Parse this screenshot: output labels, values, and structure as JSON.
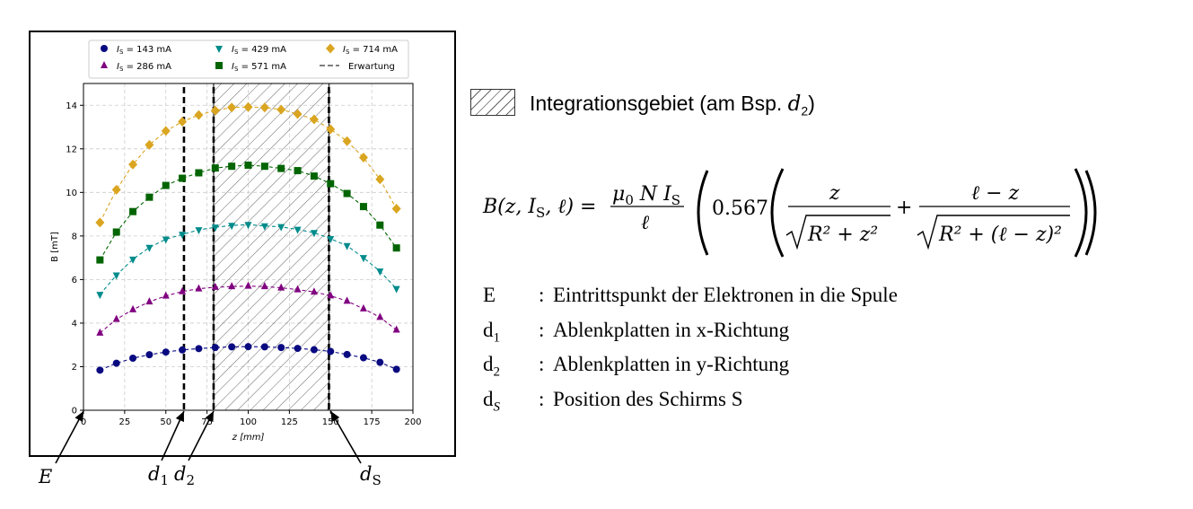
{
  "chart_data": {
    "type": "scatter",
    "xlabel": "z [mm]",
    "ylabel": "B [mT]",
    "xlim": [
      0,
      200
    ],
    "ylim": [
      0,
      15
    ],
    "xticks": [
      0,
      25,
      50,
      75,
      100,
      125,
      150,
      175,
      200
    ],
    "yticks": [
      0,
      2,
      4,
      6,
      8,
      10,
      12,
      14
    ],
    "grid": true,
    "legend_position": "top (above plot, 3 columns)",
    "x": [
      10,
      20,
      30,
      40,
      50,
      60,
      70,
      80,
      90,
      100,
      110,
      120,
      130,
      140,
      150,
      160,
      170,
      180,
      190
    ],
    "series": [
      {
        "name": "I_S = 143 mA",
        "label_text": "= 143 mA",
        "marker": "circle",
        "color": "#0a0a80",
        "values": [
          1.84,
          2.16,
          2.39,
          2.55,
          2.67,
          2.77,
          2.83,
          2.88,
          2.91,
          2.92,
          2.91,
          2.88,
          2.84,
          2.78,
          2.7,
          2.56,
          2.41,
          2.2,
          1.88
        ]
      },
      {
        "name": "I_S = 286 mA",
        "label_text": "= 286 mA",
        "marker": "triangle-up",
        "color": "#800080",
        "values": [
          3.55,
          4.18,
          4.62,
          4.98,
          5.25,
          5.45,
          5.58,
          5.65,
          5.68,
          5.7,
          5.68,
          5.62,
          5.54,
          5.43,
          5.26,
          5.01,
          4.66,
          4.27,
          3.69
        ]
      },
      {
        "name": "I_S = 429 mA",
        "label_text": "= 429 mA",
        "marker": "triangle-down",
        "color": "#008b8b",
        "values": [
          5.31,
          6.2,
          6.93,
          7.47,
          7.85,
          8.07,
          8.28,
          8.4,
          8.48,
          8.52,
          8.46,
          8.42,
          8.3,
          8.15,
          7.87,
          7.55,
          7.0,
          6.38,
          5.58
        ]
      },
      {
        "name": "I_S = 571 mA",
        "label_text": "= 571 mA",
        "marker": "square",
        "color": "#006400",
        "values": [
          6.9,
          8.18,
          9.12,
          9.78,
          10.32,
          10.65,
          10.9,
          11.12,
          11.2,
          11.25,
          11.2,
          11.1,
          11.0,
          10.75,
          10.4,
          9.95,
          9.35,
          8.5,
          7.45
        ]
      },
      {
        "name": "I_S = 714 mA",
        "label_text": "= 714 mA",
        "marker": "diamond",
        "color": "#daa520",
        "values": [
          8.62,
          10.12,
          11.28,
          12.18,
          12.82,
          13.25,
          13.55,
          13.76,
          13.9,
          13.92,
          13.9,
          13.8,
          13.6,
          13.35,
          12.9,
          12.35,
          11.6,
          10.6,
          9.25
        ]
      }
    ],
    "expectation_label": "Erwartung",
    "expectation_style": "dashed",
    "positions": {
      "E": 0,
      "d1": 61,
      "d2": 79,
      "dS": 149
    },
    "integration_region": [
      79,
      149
    ]
  },
  "annotations": {
    "E": "E",
    "d1": "d",
    "d1_sub": "1",
    "d2": "d",
    "d2_sub": "2",
    "dS": "d",
    "dS_sub": "S"
  },
  "legend_right": {
    "text": "Integrationsgebiet (am Bsp. ",
    "var": "d",
    "var_sub": "2",
    "close": ")"
  },
  "formula": {
    "lhs": "B(z, I",
    "lhs_sub": "S",
    "lhs_end": ", ℓ) =",
    "frac_num": "μ",
    "frac_num_sub": "0",
    "frac_num_rest": " N I",
    "frac_num_sub2": "S",
    "frac_den": "ℓ",
    "coef": "0.567",
    "t1_num": "z",
    "t1_den": "R² + z²",
    "plus": "+",
    "t2_num": "ℓ − z",
    "t2_den": "R² + (ℓ − z)²"
  },
  "definitions": [
    {
      "sym": "E",
      "sub": "",
      "desc": "Eintrittspunkt der Elektronen in die Spule"
    },
    {
      "sym": "d",
      "sub": "1",
      "desc": "Ablenkplatten in x-Richtung"
    },
    {
      "sym": "d",
      "sub": "2",
      "desc": "Ablenkplatten in y-Richtung"
    },
    {
      "sym": "d",
      "sub": "S",
      "desc": "Position des Schirms S"
    }
  ]
}
